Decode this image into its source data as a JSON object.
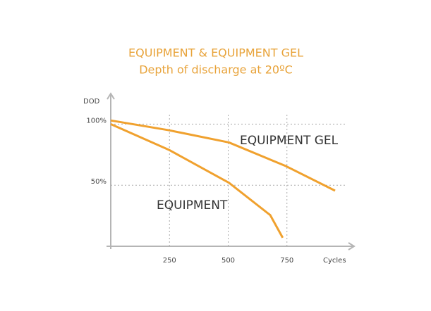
{
  "chart_data": {
    "type": "line",
    "title": "EQUIPMENT & EQUIPMENT GEL",
    "subtitle": "Depth of discharge at 20ºC",
    "y_label": "DOD",
    "x_label": "Cycles",
    "xlim": [
      0,
      1000
    ],
    "ylim": [
      0,
      125
    ],
    "xticks": [
      250,
      500,
      750
    ],
    "yticks": [
      {
        "value": 50,
        "label": "50%"
      },
      {
        "value": 100,
        "label": "100%"
      }
    ],
    "grid": true,
    "series": [
      {
        "name": "EQUIPMENT GEL",
        "color": "#f0a12e",
        "x": [
          0,
          247,
          503,
          747,
          955
        ],
        "values": [
          103,
          95,
          85,
          65.5,
          45.5
        ]
      },
      {
        "name": "EQUIPMENT",
        "color": "#f0a12e",
        "x": [
          0,
          247,
          503,
          679,
          732
        ],
        "values": [
          100,
          79,
          52,
          25.5,
          7
        ]
      }
    ]
  }
}
